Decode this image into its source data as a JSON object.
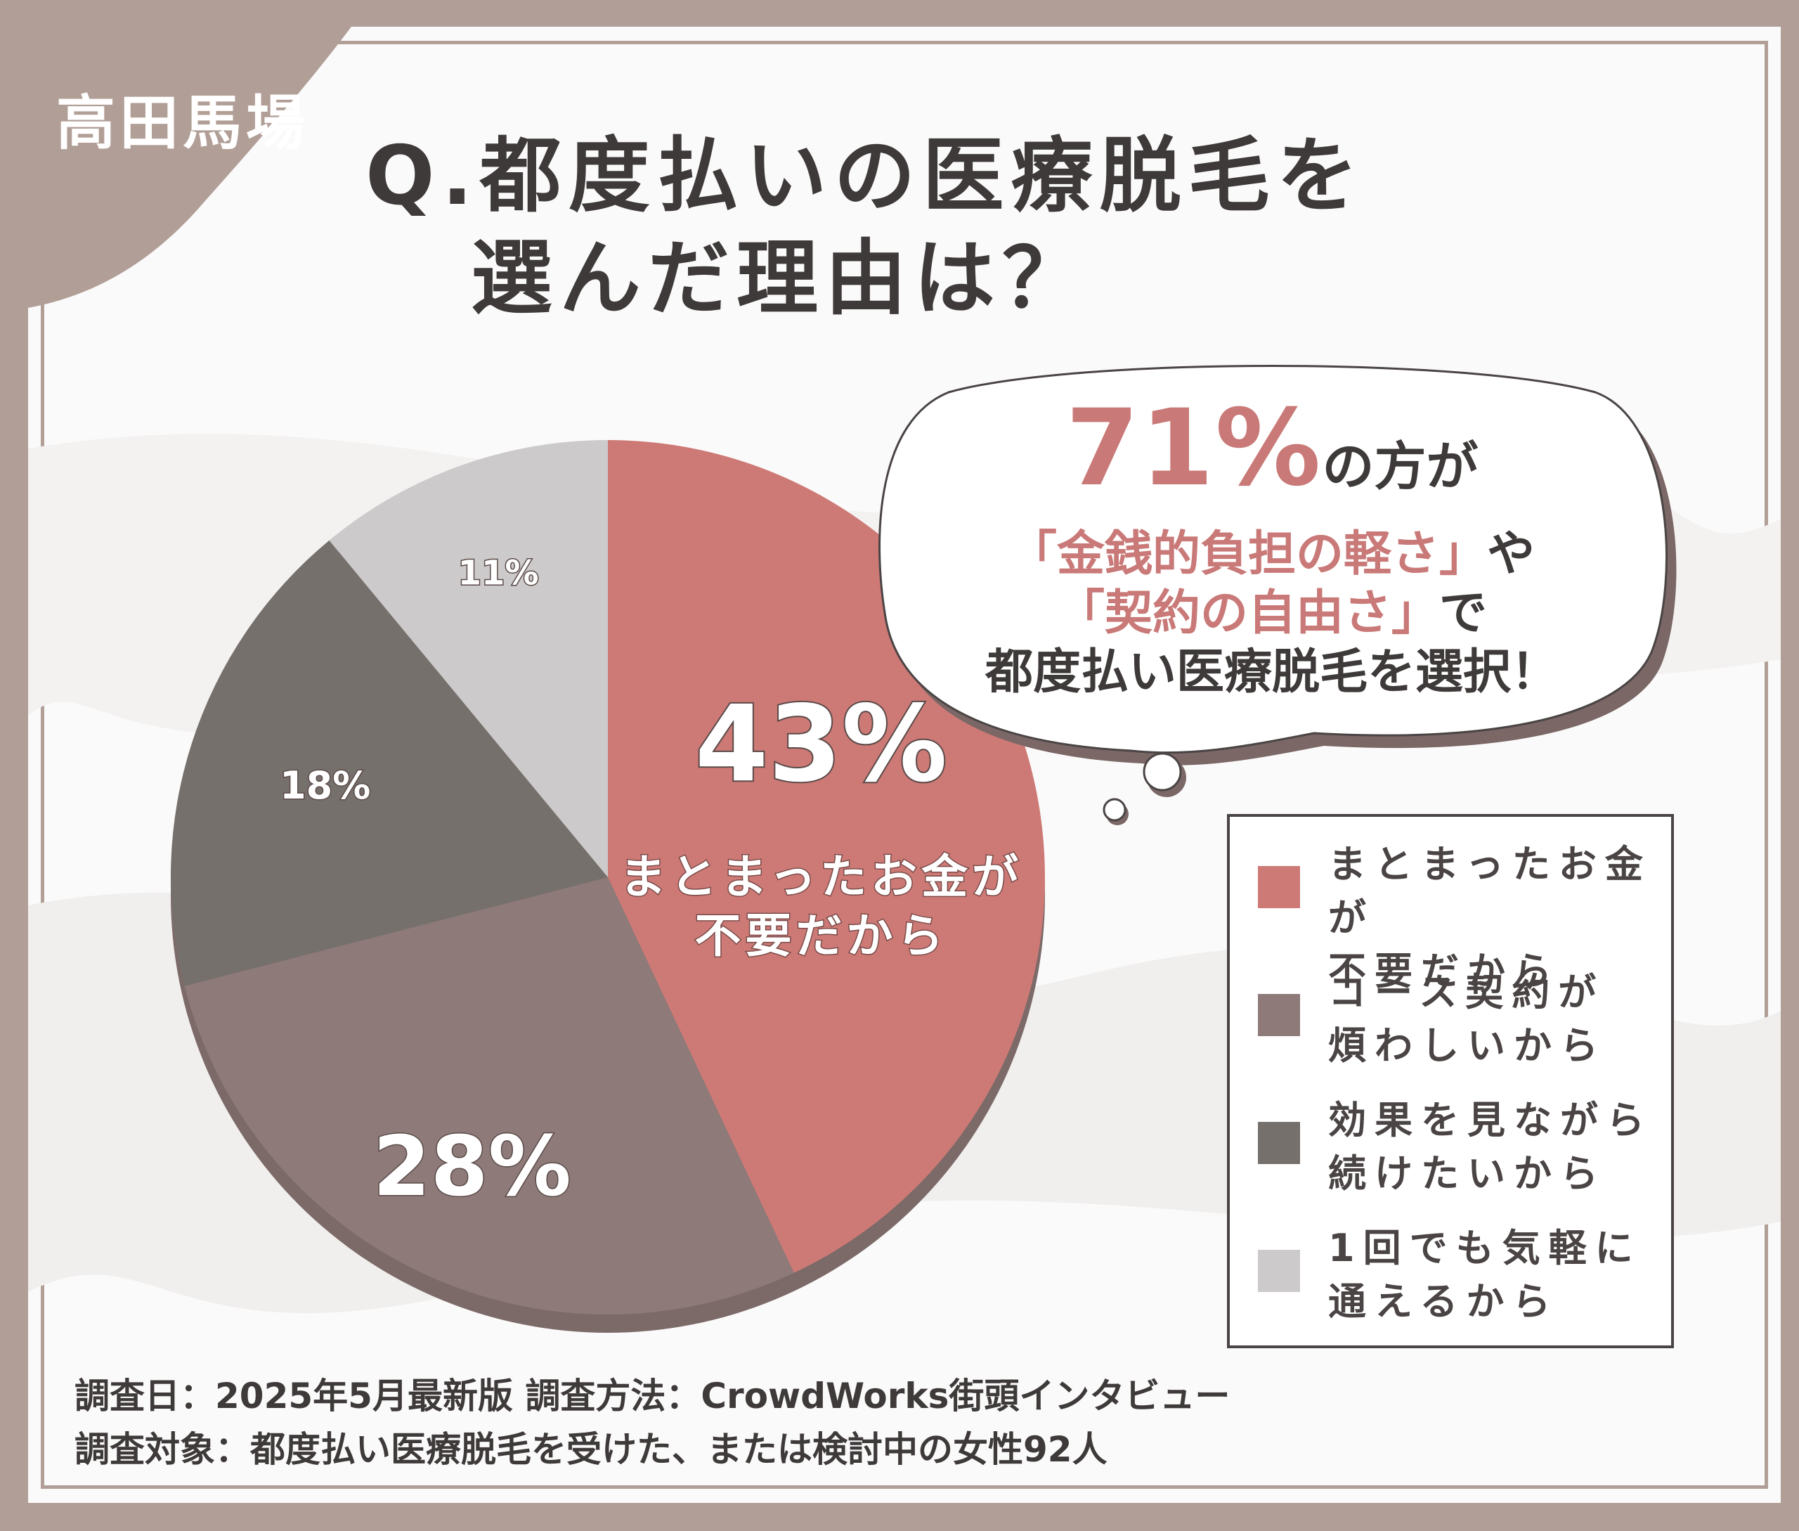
{
  "tag": "高田馬場",
  "title": {
    "line1": "Q.都度払いの医療脱毛を",
    "line2": "選んだ理由は？"
  },
  "chart_data": {
    "type": "pie",
    "slices": [
      {
        "label": "まとまったお金が不要だから",
        "value": 43,
        "display": "43%",
        "color": "#cd7a76"
      },
      {
        "label": "コース契約が煩わしいから",
        "value": 28,
        "display": "28%",
        "color": "#8d7a79"
      },
      {
        "label": "効果を見ながら続けたいから",
        "value": 18,
        "display": "18%",
        "color": "#76706c"
      },
      {
        "label": "1回でも気軽に通えるから",
        "value": 11,
        "display": "11%",
        "color": "#cccaca"
      }
    ],
    "inline_caption": {
      "line1": "まとまったお金が",
      "line2": "不要だから"
    },
    "legend": [
      {
        "line1": "まとまったお金が",
        "line2": "不要だから",
        "color": "#cd7a76"
      },
      {
        "line1": "コース契約が",
        "line2": "煩わしいから",
        "color": "#8d7a79"
      },
      {
        "line1": "効果を見ながら",
        "line2": "続けたいから",
        "color": "#76706c"
      },
      {
        "line1": "1回でも気軽に",
        "line2": "通えるから",
        "color": "#cccaca"
      }
    ]
  },
  "callout": {
    "percent": "71%",
    "line1_suffix": "の方が",
    "line2_quote": "「金銭的負担の軽さ」",
    "line2_suffix": "や",
    "line3_quote": "「契約の自由さ」",
    "line3_suffix": "で",
    "line4": "都度払い医療脱毛を選択！"
  },
  "footer": {
    "line1": "調査日：2025年5月最新版  調査方法：CrowdWorks街頭インタビュー",
    "line2": "調査対象：都度払い医療脱毛を受けた、または検討中の女性92人"
  }
}
